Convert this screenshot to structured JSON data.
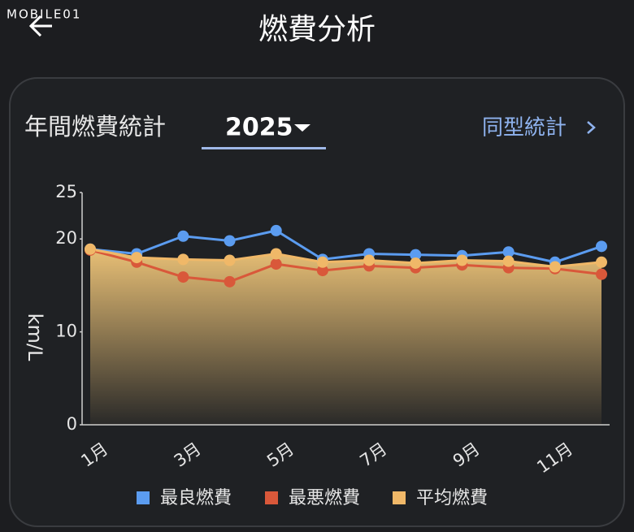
{
  "header": {
    "watermark": "MOBILE01",
    "title": "燃費分析"
  },
  "card": {
    "heading": "年間燃費統計",
    "year": "2025",
    "link": "同型統計"
  },
  "chart_data": {
    "type": "line",
    "ylabel": "km/L",
    "categories": [
      "1月",
      null,
      "3月",
      null,
      "5月",
      null,
      "7月",
      null,
      "9月",
      null,
      "11月",
      null
    ],
    "series": [
      {
        "name": "最良燃費",
        "color": "#5b9cf0",
        "values": [
          18.9,
          18.4,
          20.3,
          19.8,
          20.9,
          17.8,
          18.4,
          18.3,
          18.2,
          18.6,
          17.5,
          19.2
        ]
      },
      {
        "name": "最悪燃費",
        "color": "#d9583a",
        "values": [
          18.8,
          17.5,
          15.9,
          15.4,
          17.3,
          16.6,
          17.1,
          16.9,
          17.2,
          16.9,
          16.8,
          16.2
        ]
      },
      {
        "name": "平均燃費",
        "color": "#f0b868",
        "values": [
          18.9,
          18.0,
          17.8,
          17.7,
          18.4,
          17.5,
          17.7,
          17.4,
          17.7,
          17.6,
          17.0,
          17.5
        ],
        "area": true
      }
    ],
    "ylim": [
      0,
      25
    ],
    "yticks": [
      0,
      10,
      20,
      25
    ]
  }
}
